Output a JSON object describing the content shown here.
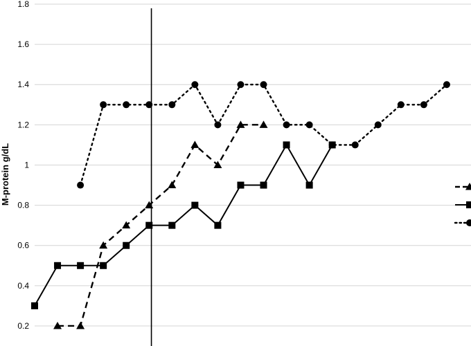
{
  "chart_data": {
    "type": "line",
    "title": "",
    "xlabel": "",
    "ylabel": "M-protein g/dL",
    "ylim": [
      0.1,
      1.8
    ],
    "yticks": [
      0.2,
      0.4,
      0.6,
      0.8,
      1,
      1.2,
      1.4,
      1.6,
      1.8
    ],
    "ytick_labels": [
      "0.2",
      "0.4",
      "0.6",
      "0.8",
      "1",
      "1.2",
      "1.4",
      "1.6",
      "1.8"
    ],
    "x": [
      1,
      2,
      3,
      4,
      5,
      6,
      7,
      8,
      9,
      10,
      11,
      12,
      13,
      14,
      15,
      16,
      17,
      18,
      19,
      20
    ],
    "xlim": [
      0.5,
      20.5
    ],
    "grid": true,
    "vertical_marker_x": 6.1,
    "legend_position": "right",
    "series": [
      {
        "style": "dashed",
        "marker": "triangle",
        "color": "#000000",
        "values": [
          null,
          0.2,
          0.2,
          0.6,
          0.7,
          0.8,
          0.9,
          1.1,
          1.0,
          1.2,
          1.2,
          null,
          null,
          null,
          null,
          null,
          null,
          null,
          null,
          null
        ]
      },
      {
        "style": "solid",
        "marker": "square",
        "color": "#000000",
        "values": [
          0.3,
          0.5,
          0.5,
          0.5,
          0.6,
          0.7,
          0.7,
          0.8,
          0.7,
          0.9,
          0.9,
          1.1,
          0.9,
          1.1,
          null,
          null,
          null,
          null,
          null,
          null
        ]
      },
      {
        "style": "dotted",
        "marker": "circle",
        "color": "#000000",
        "values": [
          null,
          null,
          0.9,
          1.3,
          1.3,
          1.3,
          1.3,
          1.4,
          1.2,
          1.4,
          1.4,
          1.2,
          1.2,
          1.1,
          1.1,
          1.2,
          1.3,
          1.3,
          1.4,
          null
        ]
      }
    ]
  }
}
